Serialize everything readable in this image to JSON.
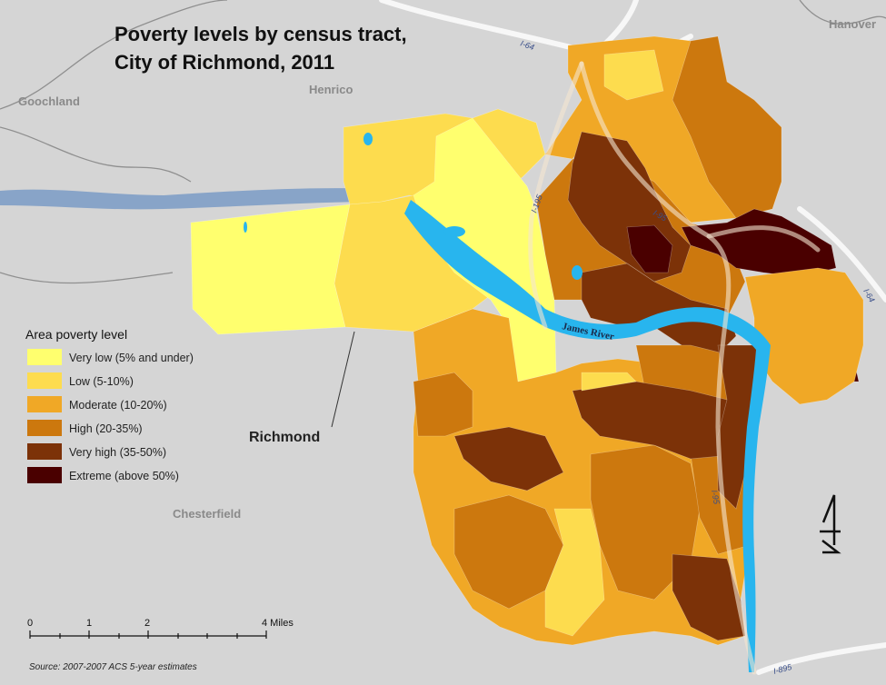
{
  "title": {
    "line1": "Poverty levels by census tract,",
    "line2": "City of Richmond, 2011"
  },
  "counties": {
    "goochland": "Goochland",
    "henrico": "Henrico",
    "hanover": "Hanover",
    "chesterfield": "Chesterfield"
  },
  "city_label": "Richmond",
  "river_label": "James River",
  "roads": {
    "i64_north": "I-64",
    "i64_east": "I-64",
    "i95": "I-95",
    "i195": "I-195",
    "i95_south": "I-95",
    "i895": "I-895"
  },
  "legend": {
    "title": "Area poverty level",
    "items": [
      {
        "label": "Very low (5% and under)",
        "color": "#ffff6e"
      },
      {
        "label": "Low (5-10%)",
        "color": "#fddc4e"
      },
      {
        "label": "Moderate (10-20%)",
        "color": "#f0a826"
      },
      {
        "label": "High (20-35%)",
        "color": "#cc780e"
      },
      {
        "label": "Very high (35-50%)",
        "color": "#7c3208"
      },
      {
        "label": "Extreme (above 50%)",
        "color": "#4a0000"
      }
    ]
  },
  "scale": {
    "ticks": [
      "0",
      "1",
      "2",
      "4 Miles"
    ]
  },
  "north_symbol": "N",
  "source": "Source: 2007-2007 ACS 5-year estimates",
  "colors": {
    "background": "#d5d5d5",
    "water": "#28b5ee",
    "road": "#f2f2f2"
  }
}
